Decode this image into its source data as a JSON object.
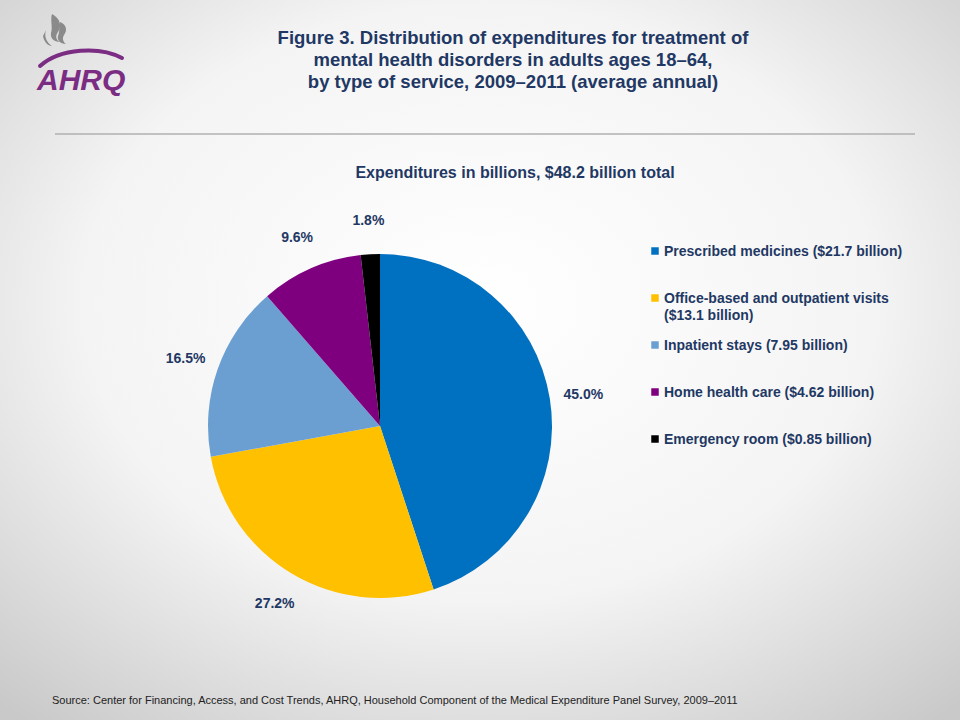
{
  "chart_data": {
    "type": "pie",
    "title": [
      "Figure 3. Distribution of expenditures for treatment of",
      "mental health disorders in adults ages 18–64,",
      "by type of service, 2009–2011 (average annual)"
    ],
    "subtitle": "Expenditures in billions, $48.2 billion total",
    "categories": [
      "Prescribed medicines ($21.7 billion)",
      "Office-based and outpatient visits ($13.1 billion)",
      "Inpatient stays (7.95 billion)",
      "Home health care ($4.62 billion)",
      "Emergency room ($0.85 billion)"
    ],
    "values": [
      45.0,
      27.2,
      16.5,
      9.6,
      1.8
    ],
    "value_labels": [
      "45.0%",
      "27.2%",
      "16.5%",
      "9.6%",
      "1.8%"
    ],
    "colors": [
      "#0070c0",
      "#ffc000",
      "#6b9fd1",
      "#7f007f",
      "#000000"
    ],
    "data_labels": true,
    "legend": "right",
    "source": "Source: Center for Financing, Access, and Cost Trends, AHRQ, Household Component of the Medical Expenditure Panel Survey, 2009–2011",
    "logo": "AHRQ"
  }
}
